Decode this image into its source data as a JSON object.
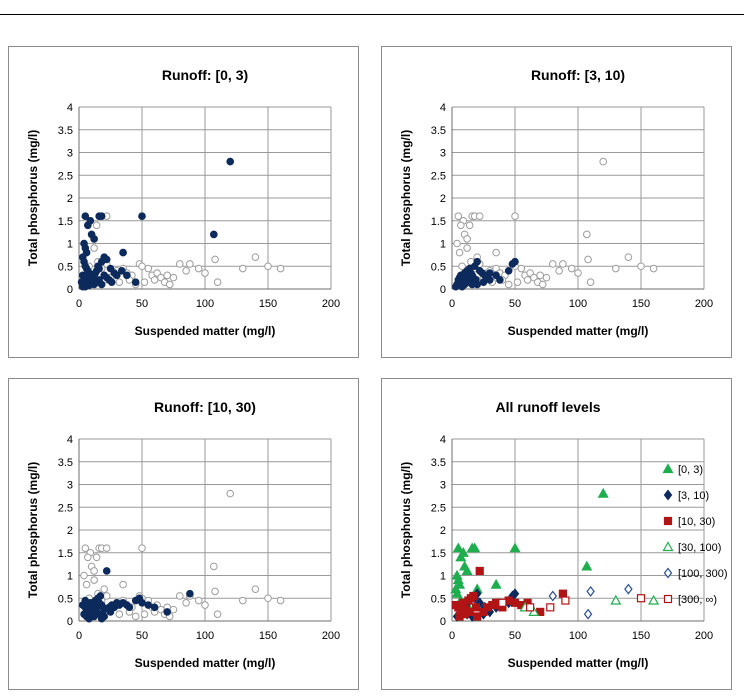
{
  "chart_data": [
    {
      "type": "scatter",
      "title": "Runoff: [0, 3)",
      "xlabel": "Suspended matter (mg/l)",
      "ylabel": "Total phosphorus  (mg/l)",
      "xlim": [
        0,
        200
      ],
      "ylim": [
        0,
        4
      ],
      "xticks": [
        0,
        50,
        100,
        150,
        200
      ],
      "yticks": [
        0,
        0.5,
        1,
        1.5,
        2,
        2.5,
        3,
        3.5,
        4
      ],
      "highlight": "[0, 3)",
      "series": [
        {
          "values": [
            [
              5,
              1.6
            ],
            [
              9,
              1.5
            ],
            [
              16,
              1.6
            ],
            [
              18,
              1.6
            ],
            [
              7,
              1.4
            ],
            [
              10,
              1.2
            ],
            [
              12,
              1.1
            ],
            [
              50,
              1.6
            ],
            [
              107,
              1.2
            ],
            [
              120,
              2.8
            ],
            [
              35,
              0.8
            ],
            [
              20,
              0.7
            ],
            [
              22,
              0.65
            ],
            [
              4,
              1.0
            ],
            [
              5,
              0.9
            ],
            [
              6,
              0.8
            ],
            [
              3,
              0.7
            ],
            [
              4,
              0.6
            ],
            [
              5,
              0.5
            ],
            [
              6,
              0.45
            ],
            [
              7,
              0.4
            ],
            [
              8,
              0.35
            ],
            [
              9,
              0.3
            ],
            [
              3,
              0.3
            ],
            [
              4,
              0.25
            ],
            [
              5,
              0.2
            ],
            [
              6,
              0.15
            ],
            [
              7,
              0.1
            ],
            [
              8,
              0.08
            ],
            [
              10,
              0.2
            ],
            [
              11,
              0.25
            ],
            [
              12,
              0.3
            ],
            [
              13,
              0.35
            ],
            [
              14,
              0.4
            ],
            [
              15,
              0.5
            ],
            [
              16,
              0.45
            ],
            [
              18,
              0.6
            ],
            [
              20,
              0.3
            ],
            [
              22,
              0.25
            ],
            [
              24,
              0.2
            ],
            [
              26,
              0.15
            ],
            [
              28,
              0.35
            ],
            [
              30,
              0.3
            ],
            [
              34,
              0.4
            ],
            [
              38,
              0.3
            ],
            [
              45,
              0.15
            ],
            [
              3,
              0.05
            ],
            [
              5,
              0.05
            ],
            [
              2,
              0.15
            ],
            [
              12,
              0.1
            ],
            [
              14,
              0.15
            ],
            [
              16,
              0.2
            ],
            [
              18,
              0.1
            ],
            [
              25,
              0.45
            ]
          ]
        }
      ]
    },
    {
      "type": "scatter",
      "title": "Runoff: [3, 10)",
      "xlabel": "Suspended matter (mg/l)",
      "ylabel": "Total phosphorus  (mg/l)",
      "xlim": [
        0,
        200
      ],
      "ylim": [
        0,
        4
      ],
      "xticks": [
        0,
        50,
        100,
        150,
        200
      ],
      "yticks": [
        0,
        0.5,
        1,
        1.5,
        2,
        2.5,
        3,
        3.5,
        4
      ],
      "highlight": "[3, 10)",
      "series": [
        {
          "values": [
            [
              10,
              0.35
            ],
            [
              12,
              0.4
            ],
            [
              14,
              0.45
            ],
            [
              16,
              0.3
            ],
            [
              18,
              0.5
            ],
            [
              20,
              0.6
            ],
            [
              22,
              0.4
            ],
            [
              24,
              0.35
            ],
            [
              26,
              0.3
            ],
            [
              28,
              0.25
            ],
            [
              30,
              0.2
            ],
            [
              5,
              0.2
            ],
            [
              6,
              0.25
            ],
            [
              7,
              0.3
            ],
            [
              8,
              0.2
            ],
            [
              9,
              0.15
            ],
            [
              10,
              0.1
            ],
            [
              12,
              0.15
            ],
            [
              14,
              0.2
            ],
            [
              16,
              0.1
            ],
            [
              18,
              0.15
            ],
            [
              20,
              0.1
            ],
            [
              25,
              0.15
            ],
            [
              35,
              0.3
            ],
            [
              38,
              0.2
            ],
            [
              45,
              0.4
            ],
            [
              48,
              0.55
            ],
            [
              50,
              0.6
            ],
            [
              4,
              0.1
            ],
            [
              3,
              0.05
            ],
            [
              8,
              0.05
            ],
            [
              11,
              0.3
            ],
            [
              15,
              0.35
            ],
            [
              17,
              0.25
            ],
            [
              19,
              0.2
            ],
            [
              30,
              0.35
            ]
          ]
        }
      ]
    },
    {
      "type": "scatter",
      "title": "Runoff: [10, 30)",
      "xlabel": "Suspended matter (mg/l)",
      "ylabel": "Total phosphorus  (mg/l)",
      "xlim": [
        0,
        200
      ],
      "ylim": [
        0,
        4
      ],
      "xticks": [
        0,
        50,
        100,
        150,
        200
      ],
      "yticks": [
        0,
        0.5,
        1,
        1.5,
        2,
        2.5,
        3,
        3.5,
        4
      ],
      "highlight": "[10, 30)",
      "series": [
        {
          "values": [
            [
              5,
              0.3
            ],
            [
              6,
              0.25
            ],
            [
              7,
              0.2
            ],
            [
              8,
              0.35
            ],
            [
              9,
              0.4
            ],
            [
              10,
              0.3
            ],
            [
              11,
              0.25
            ],
            [
              12,
              0.35
            ],
            [
              13,
              0.45
            ],
            [
              14,
              0.3
            ],
            [
              15,
              0.5
            ],
            [
              16,
              0.4
            ],
            [
              17,
              0.55
            ],
            [
              18,
              0.35
            ],
            [
              19,
              0.3
            ],
            [
              20,
              0.25
            ],
            [
              22,
              1.1
            ],
            [
              24,
              0.3
            ],
            [
              25,
              0.2
            ],
            [
              26,
              0.35
            ],
            [
              28,
              0.3
            ],
            [
              30,
              0.4
            ],
            [
              32,
              0.35
            ],
            [
              35,
              0.4
            ],
            [
              38,
              0.35
            ],
            [
              40,
              0.3
            ],
            [
              45,
              0.45
            ],
            [
              48,
              0.5
            ],
            [
              50,
              0.4
            ],
            [
              55,
              0.35
            ],
            [
              60,
              0.3
            ],
            [
              70,
              0.2
            ],
            [
              88,
              0.6
            ],
            [
              4,
              0.15
            ],
            [
              6,
              0.1
            ],
            [
              8,
              0.05
            ],
            [
              10,
              0.15
            ],
            [
              12,
              0.1
            ],
            [
              14,
              0.2
            ],
            [
              16,
              0.15
            ],
            [
              18,
              0.05
            ],
            [
              20,
              0.1
            ],
            [
              3,
              0.35
            ],
            [
              5,
              0.45
            ]
          ]
        }
      ]
    },
    {
      "type": "scatter",
      "title": "All runoff levels",
      "xlabel": "Suspended matter (mg/l)",
      "ylabel": "Total phosphorus  (mg/l)",
      "xlim": [
        0,
        200
      ],
      "ylim": [
        0,
        4
      ],
      "xticks": [
        0,
        50,
        100,
        150,
        200
      ],
      "yticks": [
        0,
        0.5,
        1,
        1.5,
        2,
        2.5,
        3,
        3.5,
        4
      ],
      "legend_position": "right",
      "series": [
        {
          "name": "[0, 3)",
          "marker": "triangle-filled",
          "color": "#1fae4f",
          "values": [
            [
              5,
              1.6
            ],
            [
              9,
              1.5
            ],
            [
              16,
              1.6
            ],
            [
              18,
              1.6
            ],
            [
              7,
              1.4
            ],
            [
              10,
              1.2
            ],
            [
              12,
              1.1
            ],
            [
              50,
              1.6
            ],
            [
              107,
              1.2
            ],
            [
              120,
              2.8
            ],
            [
              35,
              0.8
            ],
            [
              20,
              0.7
            ],
            [
              4,
              1.0
            ],
            [
              5,
              0.9
            ],
            [
              6,
              0.8
            ],
            [
              3,
              0.7
            ],
            [
              4,
              0.6
            ],
            [
              7,
              0.45
            ],
            [
              12,
              0.35
            ],
            [
              15,
              0.5
            ]
          ]
        },
        {
          "name": "[3, 10)",
          "marker": "diamond-filled",
          "color": "#0d2a5c",
          "values": [
            [
              10,
              0.35
            ],
            [
              14,
              0.45
            ],
            [
              18,
              0.5
            ],
            [
              20,
              0.6
            ],
            [
              22,
              0.4
            ],
            [
              26,
              0.3
            ],
            [
              30,
              0.2
            ],
            [
              6,
              0.25
            ],
            [
              8,
              0.2
            ],
            [
              12,
              0.15
            ],
            [
              16,
              0.1
            ],
            [
              25,
              0.15
            ],
            [
              35,
              0.3
            ],
            [
              45,
              0.4
            ],
            [
              48,
              0.55
            ],
            [
              50,
              0.6
            ],
            [
              4,
              0.1
            ]
          ]
        },
        {
          "name": "[10, 30)",
          "marker": "square-filled",
          "color": "#b01414",
          "values": [
            [
              5,
              0.3
            ],
            [
              7,
              0.2
            ],
            [
              9,
              0.4
            ],
            [
              11,
              0.25
            ],
            [
              13,
              0.45
            ],
            [
              15,
              0.5
            ],
            [
              17,
              0.55
            ],
            [
              19,
              0.3
            ],
            [
              22,
              1.1
            ],
            [
              25,
              0.2
            ],
            [
              28,
              0.3
            ],
            [
              32,
              0.35
            ],
            [
              35,
              0.4
            ],
            [
              40,
              0.3
            ],
            [
              45,
              0.45
            ],
            [
              50,
              0.4
            ],
            [
              55,
              0.35
            ],
            [
              60,
              0.4
            ],
            [
              70,
              0.2
            ],
            [
              88,
              0.6
            ],
            [
              6,
              0.1
            ],
            [
              10,
              0.15
            ],
            [
              14,
              0.2
            ],
            [
              3,
              0.35
            ],
            [
              20,
              0.1
            ],
            [
              38,
              0.35
            ]
          ]
        },
        {
          "name": "[30, 100)",
          "marker": "triangle-open",
          "color": "#1fae4f",
          "values": [
            [
              58,
              0.3
            ],
            [
              65,
              0.2
            ],
            [
              130,
              0.45
            ],
            [
              160,
              0.45
            ]
          ]
        },
        {
          "name": "[100, 300)",
          "marker": "diamond-open",
          "color": "#2a4f8f",
          "values": [
            [
              80,
              0.55
            ],
            [
              110,
              0.65
            ],
            [
              140,
              0.7
            ],
            [
              108,
              0.15
            ]
          ]
        },
        {
          "name": "[300, ∞)",
          "marker": "square-open",
          "color": "#b01414",
          "values": [
            [
              40,
              0.4
            ],
            [
              62,
              0.3
            ],
            [
              78,
              0.3
            ],
            [
              90,
              0.45
            ],
            [
              150,
              0.5
            ]
          ]
        }
      ]
    }
  ],
  "background_points": [
    [
      5,
      1.6
    ],
    [
      9,
      1.5
    ],
    [
      16,
      1.6
    ],
    [
      18,
      1.6
    ],
    [
      7,
      1.4
    ],
    [
      10,
      1.2
    ],
    [
      12,
      1.1
    ],
    [
      14,
      1.4
    ],
    [
      22,
      1.6
    ],
    [
      50,
      1.6
    ],
    [
      107,
      1.2
    ],
    [
      120,
      2.8
    ],
    [
      35,
      0.8
    ],
    [
      20,
      0.7
    ],
    [
      4,
      1.0
    ],
    [
      6,
      0.8
    ],
    [
      12,
      0.9
    ],
    [
      8,
      0.5
    ],
    [
      15,
      0.6
    ],
    [
      18,
      0.45
    ],
    [
      22,
      0.55
    ],
    [
      28,
      0.35
    ],
    [
      30,
      0.4
    ],
    [
      35,
      0.45
    ],
    [
      38,
      0.35
    ],
    [
      42,
      0.3
    ],
    [
      48,
      0.55
    ],
    [
      50,
      0.5
    ],
    [
      55,
      0.45
    ],
    [
      58,
      0.3
    ],
    [
      62,
      0.35
    ],
    [
      65,
      0.25
    ],
    [
      70,
      0.3
    ],
    [
      75,
      0.25
    ],
    [
      80,
      0.55
    ],
    [
      88,
      0.55
    ],
    [
      108,
      0.65
    ],
    [
      110,
      0.15
    ],
    [
      130,
      0.45
    ],
    [
      140,
      0.7
    ],
    [
      150,
      0.5
    ],
    [
      160,
      0.45
    ],
    [
      20,
      0.2
    ],
    [
      25,
      0.25
    ],
    [
      32,
      0.15
    ],
    [
      40,
      0.2
    ],
    [
      45,
      0.1
    ],
    [
      52,
      0.15
    ],
    [
      60,
      0.2
    ],
    [
      68,
      0.15
    ],
    [
      72,
      0.1
    ],
    [
      85,
      0.4
    ],
    [
      95,
      0.45
    ],
    [
      100,
      0.35
    ]
  ]
}
